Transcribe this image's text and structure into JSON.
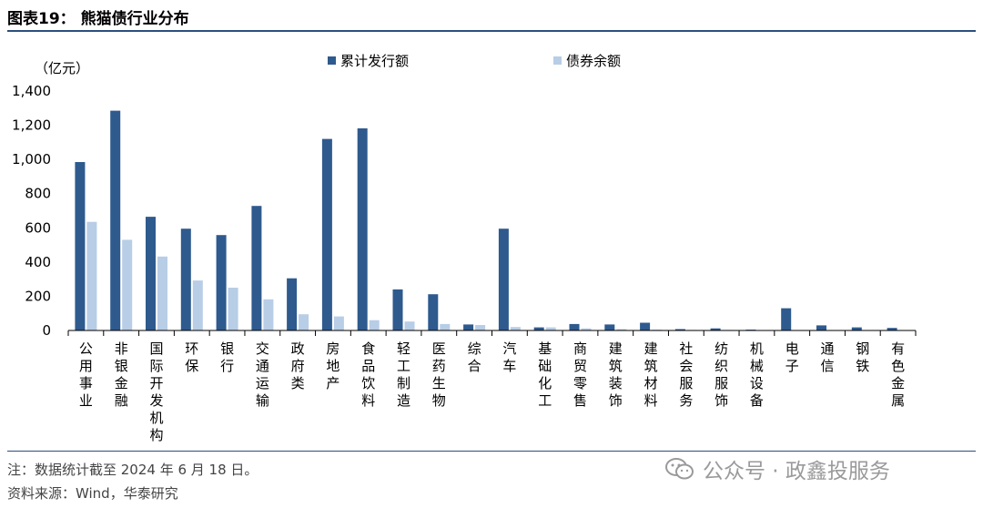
{
  "figure": {
    "title": "图表19：  熊猫债行业分布",
    "note": "注：数据统计截至 2024 年 6 月 18 日。",
    "source": "资料来源：Wind，华泰研究",
    "watermark": "公众号 · 政鑫投服务",
    "watermark_icon": "wechat-icon"
  },
  "colors": {
    "series1": "#2e5a8e",
    "series2": "#b8cde6",
    "axis": "#000000",
    "rule": "#2b4f7c"
  },
  "chart_data": {
    "type": "bar",
    "unit_label": "（亿元）",
    "ylim": [
      0,
      1400
    ],
    "yticks": [
      0,
      200,
      400,
      600,
      800,
      1000,
      1200,
      1400
    ],
    "ytick_labels": [
      "0",
      "200",
      "400",
      "600",
      "800",
      "1,000",
      "1,200",
      "1,400"
    ],
    "grid": false,
    "legend_position": "top",
    "categories": [
      "公用事业",
      "非银金融",
      "国际开发机构",
      "环保",
      "银行",
      "交通运输",
      "政府类",
      "房地产",
      "食品饮料",
      "轻工制造",
      "医药生物",
      "综合",
      "汽车",
      "基础化工",
      "商贸零售",
      "建筑装饰",
      "建筑材料",
      "社会服务",
      "纺织服饰",
      "机械设备",
      "电子",
      "通信",
      "钢铁",
      "有色金属"
    ],
    "series": [
      {
        "name": "累计发行额",
        "values": [
          985,
          1285,
          665,
          595,
          558,
          728,
          305,
          1120,
          1182,
          240,
          212,
          35,
          595,
          18,
          38,
          35,
          45,
          8,
          12,
          5,
          130,
          30,
          18,
          15
        ]
      },
      {
        "name": "债券余额",
        "values": [
          635,
          530,
          432,
          292,
          250,
          182,
          95,
          82,
          60,
          52,
          38,
          32,
          20,
          18,
          12,
          8,
          5,
          3,
          3,
          2,
          2,
          2,
          2,
          2
        ]
      }
    ]
  }
}
